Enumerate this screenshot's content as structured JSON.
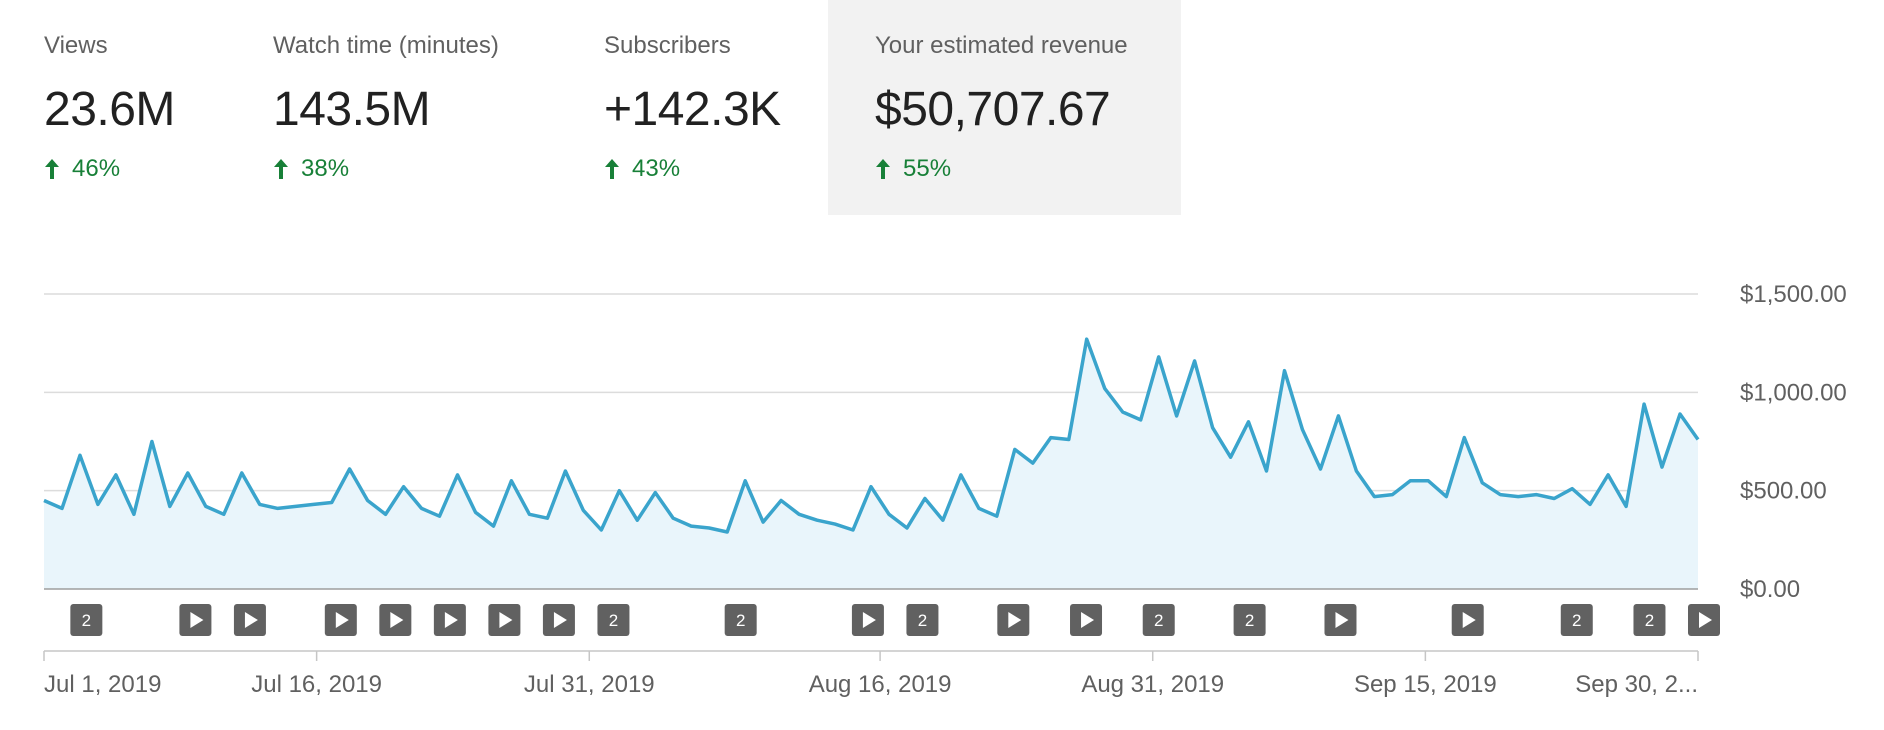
{
  "metrics": [
    {
      "label": "Views",
      "value": "23.6M",
      "change": "46%",
      "selected": false
    },
    {
      "label": "Watch time (minutes)",
      "value": "143.5M",
      "change": "38%",
      "selected": false
    },
    {
      "label": "Subscribers",
      "value": "+142.3K",
      "change": "43%",
      "selected": false
    },
    {
      "label": "Your estimated revenue",
      "value": "$50,707.67",
      "change": "55%",
      "selected": true
    }
  ],
  "colors": {
    "line": "#3aa4cc",
    "area": "#e9f5fb",
    "positive": "#188038",
    "marker": "#616161",
    "selected_bg": "#f2f2f2"
  },
  "chart_data": {
    "type": "area",
    "ylim": [
      0,
      1500
    ],
    "y_ticks": [
      "$0.00",
      "$500.00",
      "$1,000.00",
      "$1,500.00"
    ],
    "y_tick_values": [
      0,
      500,
      1000,
      1500
    ],
    "x_ticks": [
      "Jul 1, 2019",
      "Jul 16, 2019",
      "Jul 31, 2019",
      "Aug 16, 2019",
      "Aug 31, 2019",
      "Sep 15, 2019",
      "Sep 30, 2..."
    ],
    "x_tick_days": [
      0,
      15,
      30,
      46,
      61,
      76,
      91
    ],
    "x_range_days": [
      0,
      91
    ],
    "grid": true,
    "values": [
      450,
      410,
      680,
      430,
      580,
      380,
      750,
      420,
      590,
      420,
      380,
      590,
      430,
      410,
      420,
      430,
      440,
      610,
      450,
      380,
      520,
      410,
      370,
      580,
      390,
      320,
      550,
      380,
      360,
      600,
      400,
      300,
      500,
      350,
      490,
      360,
      320,
      310,
      290,
      550,
      340,
      450,
      380,
      350,
      330,
      300,
      520,
      380,
      310,
      460,
      350,
      580,
      410,
      370,
      710,
      640,
      770,
      760,
      1270,
      1020,
      900,
      860,
      1180,
      880,
      1160,
      820,
      670,
      850,
      600,
      1110,
      810,
      610,
      880,
      600,
      470,
      480,
      550,
      550,
      470,
      770,
      540,
      480,
      470,
      480,
      460,
      510,
      430,
      580,
      420,
      940,
      620,
      890,
      760
    ],
    "markers": [
      {
        "day": 2,
        "label": "2"
      },
      {
        "day": 8,
        "label": ""
      },
      {
        "day": 11,
        "label": ""
      },
      {
        "day": 16,
        "label": ""
      },
      {
        "day": 19,
        "label": ""
      },
      {
        "day": 22,
        "label": ""
      },
      {
        "day": 25,
        "label": ""
      },
      {
        "day": 28,
        "label": ""
      },
      {
        "day": 31,
        "label": "2"
      },
      {
        "day": 38,
        "label": "2"
      },
      {
        "day": 45,
        "label": ""
      },
      {
        "day": 48,
        "label": "2"
      },
      {
        "day": 53,
        "label": ""
      },
      {
        "day": 57,
        "label": ""
      },
      {
        "day": 61,
        "label": "2"
      },
      {
        "day": 66,
        "label": "2"
      },
      {
        "day": 71,
        "label": ""
      },
      {
        "day": 78,
        "label": ""
      },
      {
        "day": 84,
        "label": "2"
      },
      {
        "day": 88,
        "label": "2"
      },
      {
        "day": 91,
        "label": ""
      }
    ]
  }
}
